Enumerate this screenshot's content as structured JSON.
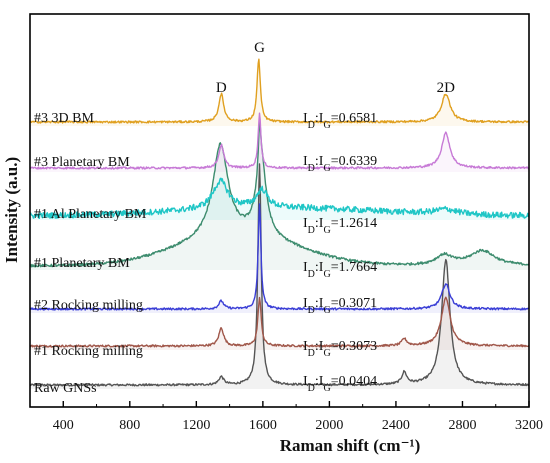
{
  "chart_data": {
    "type": "line",
    "xlabel": "Raman shift (cm⁻¹)",
    "ylabel": "Intensity (a.u.)",
    "xlim": [
      200,
      3200
    ],
    "x_ticks": [
      400,
      800,
      1200,
      1600,
      2000,
      2400,
      2800,
      3200
    ],
    "y_ticks_shown": false,
    "grid": false,
    "legend": "none",
    "peak_labels": [
      {
        "text": "D",
        "x": 1350
      },
      {
        "text": "G",
        "x": 1580
      },
      {
        "text": "2D",
        "x": 2700
      }
    ],
    "series": [
      {
        "name": "Raw GNSs",
        "ratio": "0.0404",
        "color": "#555555",
        "baseline": 16,
        "peaks": [
          {
            "center": 1350,
            "height": 8,
            "width": 18
          },
          {
            "center": 1580,
            "height": 220,
            "width": 12
          },
          {
            "center": 2450,
            "height": 12,
            "width": 18
          },
          {
            "center": 2700,
            "height": 125,
            "width": 30
          }
        ],
        "noise": 1.0,
        "broad": []
      },
      {
        "name": "#1 Rocking milling",
        "ratio": "0.3073",
        "color": "#a0574a",
        "baseline": 55,
        "peaks": [
          {
            "center": 1350,
            "height": 18,
            "width": 18
          },
          {
            "center": 1580,
            "height": 48,
            "width": 12
          },
          {
            "center": 2450,
            "height": 7,
            "width": 18
          },
          {
            "center": 2700,
            "height": 48,
            "width": 32
          }
        ],
        "noise": 1.0,
        "broad": []
      },
      {
        "name": "#2 Rocking milling",
        "ratio": "0.3071",
        "color": "#3b3fd6",
        "baseline": 92,
        "peaks": [
          {
            "center": 1350,
            "height": 8,
            "width": 18
          },
          {
            "center": 1580,
            "height": 105,
            "width": 10
          },
          {
            "center": 2700,
            "height": 25,
            "width": 30
          }
        ],
        "noise": 1.0,
        "broad": []
      },
      {
        "name": "#1 Planetary BM",
        "ratio": "1.7664",
        "color": "#3d8c6e",
        "baseline": 135,
        "peaks": [
          {
            "center": 1345,
            "height": 92,
            "width": 55
          },
          {
            "center": 1590,
            "height": 78,
            "width": 35
          },
          {
            "center": 1580,
            "height": 40,
            "width": 8
          },
          {
            "center": 2690,
            "height": 10,
            "width": 60
          },
          {
            "center": 2920,
            "height": 15,
            "width": 90
          }
        ],
        "noise": 1.2,
        "broad": [
          {
            "center": 1450,
            "height": 30,
            "width": 350
          }
        ]
      },
      {
        "name": "#1 Al Planetary BM",
        "ratio": "1.2614",
        "color": "#1fc6c6",
        "baseline": 185,
        "peaks": [
          {
            "center": 1345,
            "height": 28,
            "width": 55
          },
          {
            "center": 1595,
            "height": 18,
            "width": 40
          },
          {
            "center": 2700,
            "height": 5,
            "width": 80
          }
        ],
        "noise": 3.0,
        "broad": [
          {
            "center": 1700,
            "height": 8,
            "width": 600
          }
        ]
      },
      {
        "name": "#3 Planetary BM",
        "ratio": "0.6339",
        "color": "#c77ad6",
        "baseline": 233,
        "peaks": [
          {
            "center": 1350,
            "height": 23,
            "width": 18
          },
          {
            "center": 1580,
            "height": 55,
            "width": 10
          },
          {
            "center": 2700,
            "height": 35,
            "width": 30
          }
        ],
        "noise": 1.0,
        "broad": []
      },
      {
        "name": "#3 3D BM",
        "ratio": "0.6581",
        "color": "#e0a020",
        "baseline": 279,
        "peaks": [
          {
            "center": 1350,
            "height": 28,
            "width": 18
          },
          {
            "center": 1575,
            "height": 63,
            "width": 12
          },
          {
            "center": 2700,
            "height": 28,
            "width": 32
          }
        ],
        "noise": 1.0,
        "broad": []
      }
    ]
  }
}
